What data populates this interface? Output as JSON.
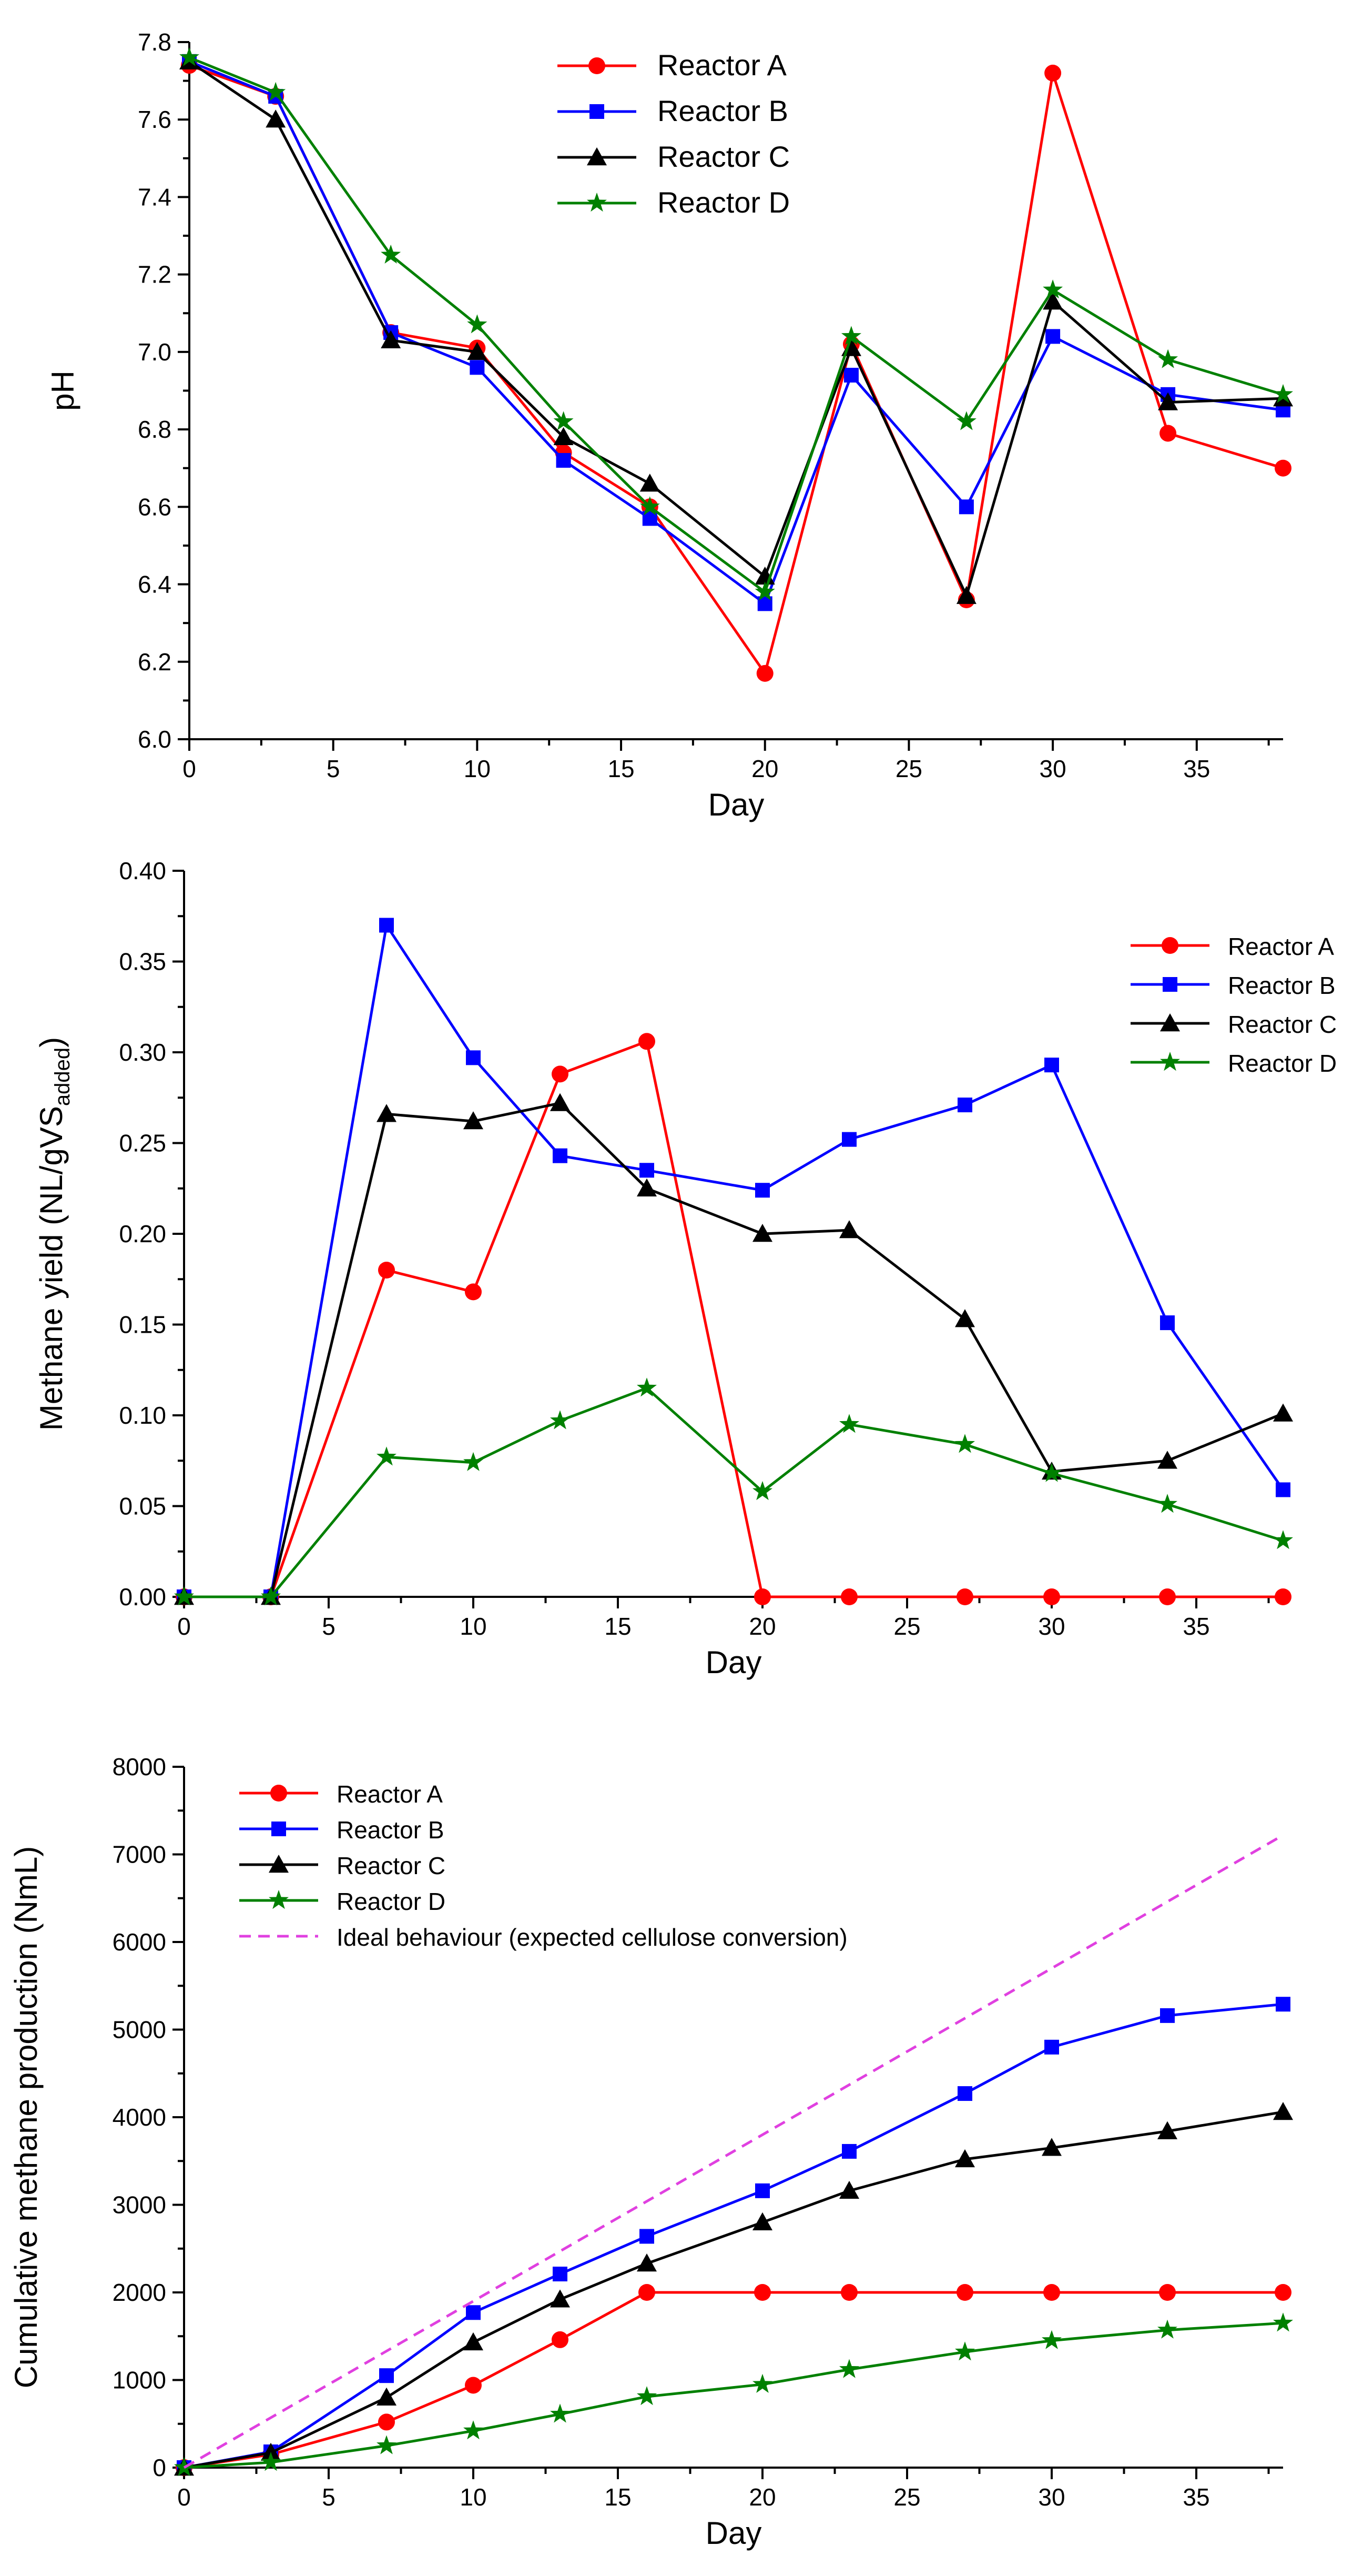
{
  "chart_data": [
    {
      "type": "line",
      "title": "",
      "xlabel": "Day",
      "ylabel": "pH",
      "xlim": [
        0,
        38
      ],
      "ylim": [
        6.0,
        7.8
      ],
      "xticks": [
        0,
        5,
        10,
        15,
        20,
        25,
        30,
        35
      ],
      "xtick_labels": [
        "0",
        "5",
        "10",
        "15",
        "20",
        "25",
        "30",
        "35"
      ],
      "yticks": [
        6.0,
        6.2,
        6.4,
        6.6,
        6.8,
        7.0,
        7.2,
        7.4,
        7.6,
        7.8
      ],
      "ytick_labels": [
        "6.0",
        "6.2",
        "6.4",
        "6.6",
        "6.8",
        "7.0",
        "7.2",
        "7.4",
        "7.6",
        "7.8"
      ],
      "grid": false,
      "legend_position": "top-center",
      "x": [
        0,
        3,
        7,
        10,
        13,
        16,
        20,
        23,
        27,
        30,
        34,
        38
      ],
      "series": [
        {
          "name": "Reactor A",
          "color": "#ff0000",
          "marker": "circle",
          "values": [
            7.74,
            7.66,
            7.05,
            7.01,
            6.74,
            6.6,
            6.17,
            7.02,
            6.36,
            7.72,
            6.79,
            6.7
          ]
        },
        {
          "name": "Reactor B",
          "color": "#0000ff",
          "marker": "square",
          "values": [
            7.75,
            7.66,
            7.05,
            6.96,
            6.72,
            6.57,
            6.35,
            6.94,
            6.6,
            7.04,
            6.89,
            6.85
          ]
        },
        {
          "name": "Reactor C",
          "color": "#000000",
          "marker": "triangle",
          "values": [
            7.75,
            7.6,
            7.03,
            7.0,
            6.78,
            6.66,
            6.42,
            7.01,
            6.37,
            7.13,
            6.87,
            6.88
          ]
        },
        {
          "name": "Reactor D",
          "color": "#008000",
          "marker": "star",
          "values": [
            7.76,
            7.67,
            7.25,
            7.07,
            6.82,
            6.6,
            6.38,
            7.04,
            6.82,
            7.16,
            6.98,
            6.89
          ]
        }
      ]
    },
    {
      "type": "line",
      "title": "",
      "xlabel": "Day",
      "ylabel_main": "Methane yield (NL/gVS",
      "ylabel_sub": "added",
      "ylabel_end": ")",
      "xlim": [
        0,
        38
      ],
      "ylim": [
        0.0,
        0.4
      ],
      "xticks": [
        0,
        5,
        10,
        15,
        20,
        25,
        30,
        35
      ],
      "xtick_labels": [
        "0",
        "5",
        "10",
        "15",
        "20",
        "25",
        "30",
        "35"
      ],
      "yticks": [
        0.0,
        0.05,
        0.1,
        0.15,
        0.2,
        0.25,
        0.3,
        0.35,
        0.4
      ],
      "ytick_labels": [
        "0.00",
        "0.05",
        "0.10",
        "0.15",
        "0.20",
        "0.25",
        "0.30",
        "0.35",
        "0.40"
      ],
      "grid": false,
      "legend_position": "right",
      "x": [
        0,
        3,
        7,
        10,
        13,
        16,
        20,
        23,
        27,
        30,
        34,
        38
      ],
      "series": [
        {
          "name": "Reactor A",
          "color": "#ff0000",
          "marker": "circle",
          "values": [
            0.0,
            0.0,
            0.18,
            0.168,
            0.288,
            0.306,
            0.0,
            0.0,
            0.0,
            0.0,
            0.0,
            0.0
          ]
        },
        {
          "name": "Reactor B",
          "color": "#0000ff",
          "marker": "square",
          "values": [
            0.0,
            0.0,
            0.37,
            0.297,
            0.243,
            0.235,
            0.224,
            0.252,
            0.271,
            0.293,
            0.151,
            0.059
          ]
        },
        {
          "name": "Reactor C",
          "color": "#000000",
          "marker": "triangle",
          "values": [
            0.0,
            0.0,
            0.266,
            0.262,
            0.272,
            0.225,
            0.2,
            0.202,
            0.153,
            0.069,
            0.075,
            0.101
          ]
        },
        {
          "name": "Reactor D",
          "color": "#008000",
          "marker": "star",
          "values": [
            0.0,
            0.0,
            0.077,
            0.074,
            0.097,
            0.115,
            0.058,
            0.095,
            0.084,
            0.068,
            0.051,
            0.031
          ]
        }
      ]
    },
    {
      "type": "line",
      "title": "",
      "xlabel": "Day",
      "ylabel": "Cumulative methane production (NmL)",
      "xlim": [
        0,
        38
      ],
      "ylim": [
        0,
        8000
      ],
      "xticks": [
        0,
        5,
        10,
        15,
        20,
        25,
        30,
        35
      ],
      "xtick_labels": [
        "0",
        "5",
        "10",
        "15",
        "20",
        "25",
        "30",
        "35"
      ],
      "yticks": [
        0,
        1000,
        2000,
        3000,
        4000,
        5000,
        6000,
        7000,
        8000
      ],
      "ytick_labels": [
        "0",
        "1000",
        "2000",
        "3000",
        "4000",
        "5000",
        "6000",
        "7000",
        "8000"
      ],
      "grid": false,
      "legend_position": "top-left",
      "x": [
        0,
        3,
        7,
        10,
        13,
        16,
        20,
        23,
        27,
        30,
        34,
        38
      ],
      "series": [
        {
          "name": "Reactor A",
          "color": "#ff0000",
          "marker": "circle",
          "values": [
            0,
            150,
            520,
            940,
            1460,
            2000,
            2000,
            2000,
            2000,
            2000,
            2000,
            2000
          ]
        },
        {
          "name": "Reactor B",
          "color": "#0000ff",
          "marker": "square",
          "values": [
            0,
            180,
            1050,
            1770,
            2210,
            2640,
            3160,
            3610,
            4270,
            4800,
            5160,
            5290
          ]
        },
        {
          "name": "Reactor C",
          "color": "#000000",
          "marker": "triangle",
          "values": [
            0,
            170,
            800,
            1430,
            1920,
            2330,
            2800,
            3160,
            3520,
            3650,
            3840,
            4060
          ]
        },
        {
          "name": "Reactor D",
          "color": "#008000",
          "marker": "star",
          "values": [
            0,
            60,
            250,
            420,
            610,
            810,
            950,
            1120,
            1320,
            1450,
            1570,
            1650
          ]
        },
        {
          "name": "Ideal behaviour (expected cellulose conversion)",
          "color": "#e040e0",
          "marker": "none",
          "dashed": true,
          "x": [
            0,
            38
          ],
          "values": [
            0,
            7220
          ]
        }
      ]
    }
  ]
}
